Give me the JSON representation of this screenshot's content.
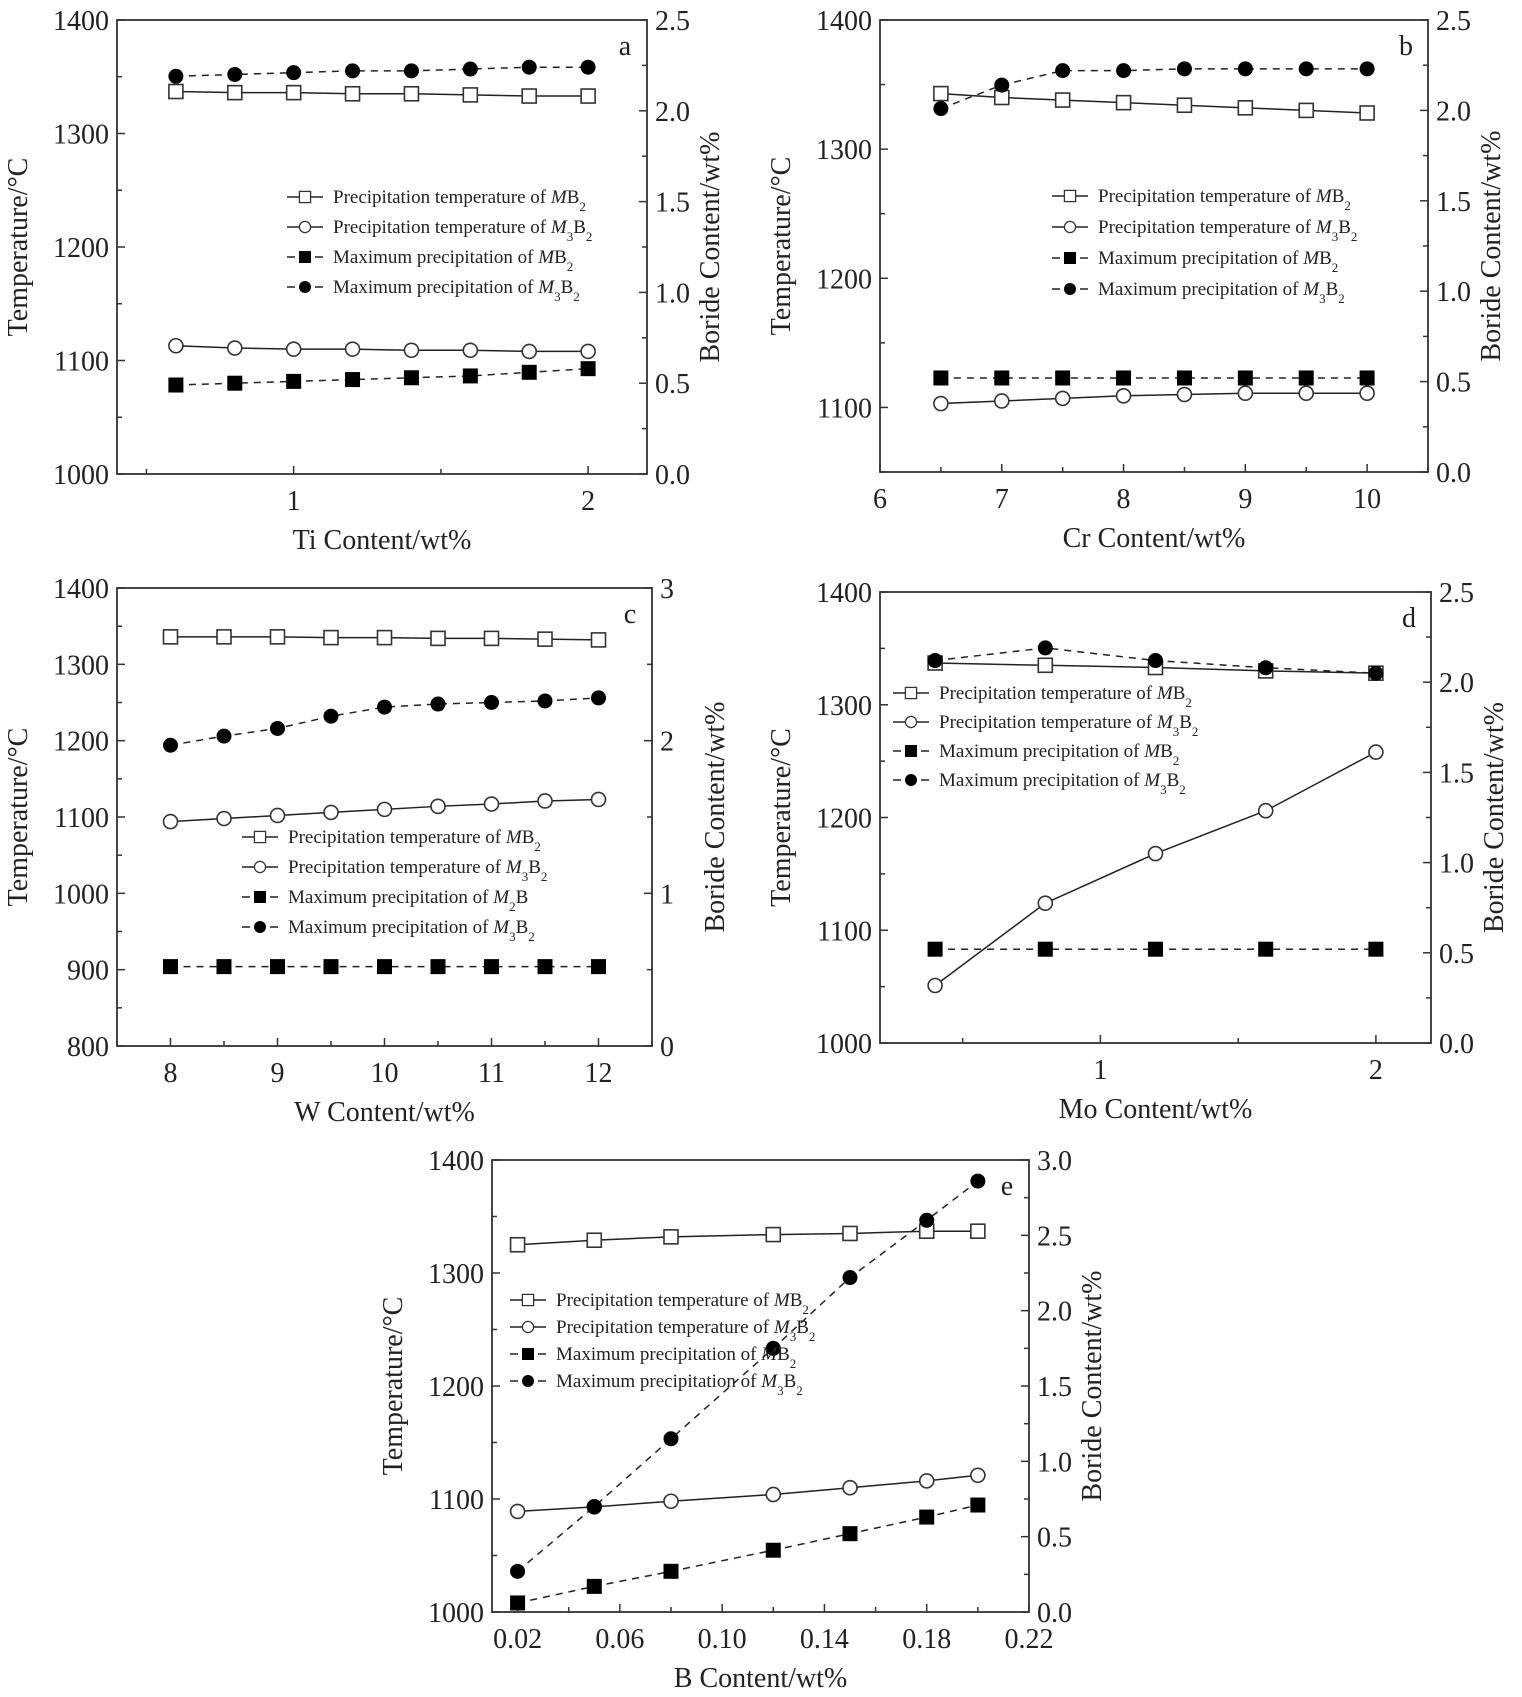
{
  "figure": {
    "legend_labels": {
      "mb2_temp": "Precipitation temperature of MB2",
      "m3b2_temp": "Precipitation temperature of M3B2",
      "mb2_max": "Maximum precipitation of MB2",
      "m3b2_max": "Maximum precipitation of M3B2",
      "m2b_max": "Maximum precipitation of M2B"
    }
  },
  "chart_data": [
    {
      "id": "a",
      "type": "line",
      "panel_label": "a",
      "xlabel": "Ti Content/wt%",
      "ylabel": "Temperature/°C",
      "y2label": "Boride Content/wt%",
      "xlim": [
        0.4,
        2.2
      ],
      "ylim": [
        1000,
        1400
      ],
      "y2lim": [
        0,
        2.5
      ],
      "xticks": [
        1,
        2
      ],
      "xtick_labels": [
        "1",
        "2"
      ],
      "yticks": [
        1000,
        1100,
        1200,
        1300,
        1400
      ],
      "ytick_labels": [
        "1000",
        "1100",
        "1200",
        "1300",
        "1400"
      ],
      "y2ticks": [
        0,
        0.5,
        1.0,
        1.5,
        2.0,
        2.5
      ],
      "y2tick_labels": [
        "0.0",
        "0.5",
        "1.0",
        "1.5",
        "2.0",
        "2.5"
      ],
      "legend_placement": "center-right",
      "x": [
        0.6,
        0.8,
        1.0,
        1.2,
        1.4,
        1.6,
        1.8,
        2.0
      ],
      "series": [
        {
          "name": "Precipitation temperature of MB2",
          "axis": "left",
          "marker": "open-square",
          "line": "solid",
          "values": [
            1337,
            1336,
            1336,
            1335,
            1335,
            1334,
            1333,
            1333
          ]
        },
        {
          "name": "Precipitation temperature of M3B2",
          "axis": "left",
          "marker": "open-circle",
          "line": "solid",
          "values": [
            1113,
            1111,
            1110,
            1110,
            1109,
            1109,
            1108,
            1108
          ]
        },
        {
          "name": "Maximum precipitation of MB2",
          "axis": "right",
          "marker": "filled-square",
          "line": "dashed",
          "values": [
            0.49,
            0.5,
            0.51,
            0.52,
            0.53,
            0.54,
            0.56,
            0.58
          ]
        },
        {
          "name": "Maximum precipitation of M3B2",
          "axis": "right",
          "marker": "filled-circle",
          "line": "dashed",
          "values": [
            2.19,
            2.2,
            2.21,
            2.22,
            2.22,
            2.23,
            2.24,
            2.24
          ]
        }
      ]
    },
    {
      "id": "b",
      "type": "line",
      "panel_label": "b",
      "xlabel": "Cr Content/wt%",
      "ylabel": "Temperature/°C",
      "y2label": "Boride Content/wt%",
      "xlim": [
        6,
        10.5
      ],
      "ylim": [
        1050,
        1400
      ],
      "y2lim": [
        0,
        2.5
      ],
      "xticks": [
        6,
        7,
        8,
        9,
        10
      ],
      "xtick_labels": [
        "6",
        "7",
        "8",
        "9",
        "10"
      ],
      "yticks": [
        1100,
        1200,
        1300,
        1400
      ],
      "ytick_labels": [
        "1100",
        "1200",
        "1300",
        "1400"
      ],
      "y2ticks": [
        0,
        0.5,
        1.0,
        1.5,
        2.0,
        2.5
      ],
      "y2tick_labels": [
        "0.0",
        "0.5",
        "1.0",
        "1.5",
        "2.0",
        "2.5"
      ],
      "legend_placement": "center-right",
      "x": [
        6.5,
        7.0,
        7.5,
        8.0,
        8.5,
        9.0,
        9.5,
        10.0
      ],
      "series": [
        {
          "name": "Precipitation temperature of MB2",
          "axis": "left",
          "marker": "open-square",
          "line": "solid",
          "values": [
            1343,
            1340,
            1338,
            1336,
            1334,
            1332,
            1330,
            1328
          ]
        },
        {
          "name": "Precipitation temperature of M3B2",
          "axis": "left",
          "marker": "open-circle",
          "line": "solid",
          "values": [
            1103,
            1105,
            1107,
            1109,
            1110,
            1111,
            1111,
            1111
          ]
        },
        {
          "name": "Maximum precipitation of MB2",
          "axis": "right",
          "marker": "filled-square",
          "line": "dashed",
          "values": [
            0.52,
            0.52,
            0.52,
            0.52,
            0.52,
            0.52,
            0.52,
            0.52
          ]
        },
        {
          "name": "Maximum precipitation of M3B2",
          "axis": "right",
          "marker": "filled-circle",
          "line": "dashed",
          "values": [
            2.01,
            2.14,
            2.22,
            2.22,
            2.23,
            2.23,
            2.23,
            2.23
          ]
        }
      ]
    },
    {
      "id": "c",
      "type": "line",
      "panel_label": "c",
      "xlabel": "W Content/wt%",
      "ylabel": "Temperature/°C",
      "y2label": "Boride Content/wt%",
      "xlim": [
        7.5,
        12.5
      ],
      "ylim": [
        800,
        1400
      ],
      "y2lim": [
        0,
        3
      ],
      "xticks": [
        8,
        9,
        10,
        11,
        12
      ],
      "xtick_labels": [
        "8",
        "9",
        "10",
        "11",
        "12"
      ],
      "yticks": [
        800,
        900,
        1000,
        1100,
        1200,
        1300,
        1400
      ],
      "ytick_labels": [
        "800",
        "900",
        "1000",
        "1100",
        "1200",
        "1300",
        "1400"
      ],
      "y2ticks": [
        0,
        1,
        2,
        3
      ],
      "y2tick_labels": [
        "0",
        "1",
        "2",
        "3"
      ],
      "legend_placement": "center",
      "x": [
        8.0,
        8.5,
        9.0,
        9.5,
        10.0,
        10.5,
        11.0,
        11.5,
        12.0
      ],
      "series": [
        {
          "name": "Precipitation temperature of MB2",
          "axis": "left",
          "marker": "open-square",
          "line": "solid",
          "values": [
            1336,
            1336,
            1336,
            1335,
            1335,
            1334,
            1334,
            1333,
            1332
          ]
        },
        {
          "name": "Precipitation temperature of M3B2",
          "axis": "left",
          "marker": "open-circle",
          "line": "solid",
          "values": [
            1094,
            1098,
            1102,
            1106,
            1110,
            1114,
            1117,
            1121,
            1123
          ]
        },
        {
          "name": "Maximum precipitation of M2B",
          "axis": "right",
          "marker": "filled-square",
          "line": "dashed",
          "values": [
            0.52,
            0.52,
            0.52,
            0.52,
            0.52,
            0.52,
            0.52,
            0.52,
            0.52
          ]
        },
        {
          "name": "Maximum precipitation of M3B2",
          "axis": "right",
          "marker": "filled-circle",
          "line": "dashed",
          "values": [
            1.97,
            2.03,
            2.08,
            2.16,
            2.22,
            2.24,
            2.25,
            2.26,
            2.28
          ]
        }
      ]
    },
    {
      "id": "d",
      "type": "line",
      "panel_label": "d",
      "xlabel": "Mo Content/wt%",
      "ylabel": "Temperature/°C",
      "y2label": "Boride Content/wt%",
      "xlim": [
        0.2,
        2.2
      ],
      "ylim": [
        1000,
        1400
      ],
      "y2lim": [
        0,
        2.5
      ],
      "xticks": [
        1,
        2
      ],
      "xtick_labels": [
        "1",
        "2"
      ],
      "yticks": [
        1000,
        1100,
        1200,
        1300,
        1400
      ],
      "ytick_labels": [
        "1000",
        "1100",
        "1200",
        "1300",
        "1400"
      ],
      "y2ticks": [
        0,
        0.5,
        1.0,
        1.5,
        2.0,
        2.5
      ],
      "y2tick_labels": [
        "0.0",
        "0.5",
        "1.0",
        "1.5",
        "2.0",
        "2.5"
      ],
      "legend_placement": "upper-left",
      "x": [
        0.4,
        0.8,
        1.2,
        1.6,
        2.0
      ],
      "series": [
        {
          "name": "Precipitation temperature of MB2",
          "axis": "left",
          "marker": "open-square",
          "line": "solid",
          "values": [
            1337,
            1335,
            1333,
            1330,
            1328
          ]
        },
        {
          "name": "Precipitation temperature of M3B2",
          "axis": "left",
          "marker": "open-circle",
          "line": "solid",
          "values": [
            1051,
            1124,
            1168,
            1206,
            1258
          ]
        },
        {
          "name": "Maximum precipitation of MB2",
          "axis": "right",
          "marker": "filled-square",
          "line": "dashed",
          "values": [
            0.52,
            0.52,
            0.52,
            0.52,
            0.52
          ]
        },
        {
          "name": "Maximum precipitation of M3B2",
          "axis": "right",
          "marker": "filled-circle",
          "line": "dashed",
          "values": [
            2.12,
            2.19,
            2.12,
            2.08,
            2.05
          ]
        }
      ]
    },
    {
      "id": "e",
      "type": "line",
      "panel_label": "e",
      "xlabel": "B Content/wt%",
      "ylabel": "Temperature/°C",
      "y2label": "Boride Content/wt%",
      "xlim": [
        0.01,
        0.22
      ],
      "ylim": [
        1000,
        1400
      ],
      "y2lim": [
        0,
        3.0
      ],
      "xticks": [
        0.02,
        0.06,
        0.1,
        0.14,
        0.18,
        0.22
      ],
      "xtick_labels": [
        "0.02",
        "0.06",
        "0.10",
        "0.14",
        "0.18",
        "0.22"
      ],
      "yticks": [
        1000,
        1100,
        1200,
        1300,
        1400
      ],
      "ytick_labels": [
        "1000",
        "1100",
        "1200",
        "1300",
        "1400"
      ],
      "y2ticks": [
        0,
        0.5,
        1.0,
        1.5,
        2.0,
        2.5,
        3.0
      ],
      "y2tick_labels": [
        "0.0",
        "0.5",
        "1.0",
        "1.5",
        "2.0",
        "2.5",
        "3.0"
      ],
      "legend_placement": "center-left",
      "x": [
        0.02,
        0.05,
        0.08,
        0.12,
        0.15,
        0.18,
        0.2
      ],
      "series": [
        {
          "name": "Precipitation temperature of MB2",
          "axis": "left",
          "marker": "open-square",
          "line": "solid",
          "values": [
            1325,
            1329,
            1332,
            1334,
            1335,
            1337,
            1337
          ]
        },
        {
          "name": "Precipitation temperature of M3B2",
          "axis": "left",
          "marker": "open-circle",
          "line": "solid",
          "values": [
            1089,
            1093,
            1098,
            1104,
            1110,
            1116,
            1121
          ]
        },
        {
          "name": "Maximum precipitation of MB2",
          "axis": "right",
          "marker": "filled-square",
          "line": "dashed",
          "values": [
            0.06,
            0.17,
            0.27,
            0.41,
            0.52,
            0.63,
            0.71
          ]
        },
        {
          "name": "Maximum precipitation of M3B2",
          "axis": "right",
          "marker": "filled-circle",
          "line": "dashed",
          "values": [
            0.27,
            0.7,
            1.15,
            1.75,
            2.22,
            2.6,
            2.86
          ]
        }
      ]
    }
  ]
}
